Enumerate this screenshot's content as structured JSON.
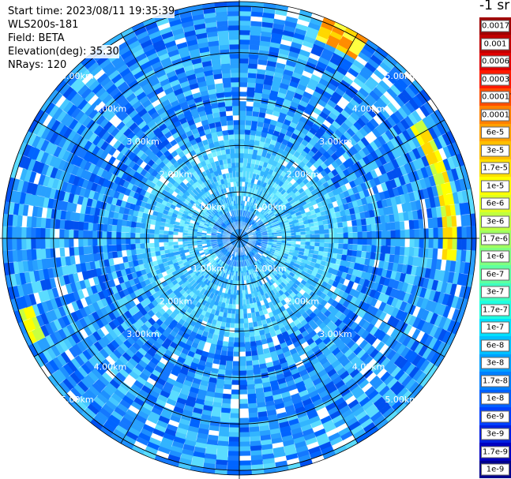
{
  "header": {
    "start_time": "Start time: 2023/08/11 19:35:39",
    "instrument": "WLS200s-181",
    "field": "Field: BETA",
    "elevation": "Elevation(deg): 35.30",
    "nrays": "NRays: 120"
  },
  "chart_data": {
    "type": "heatmap",
    "projection": "polar",
    "n_rays": 120,
    "range_rings_km": [
      1.0,
      2.0,
      3.0,
      4.0,
      5.0
    ],
    "ring_labels": [
      "1.00km",
      "2.00km",
      "3.00km",
      "4.00km",
      "5.00km"
    ],
    "colorbar": {
      "unit_label": "-1 sr",
      "tick_labels": [
        "0.0017",
        "0.001",
        "0.0006",
        "0.0003",
        "0.00017",
        "0.0001",
        "6e-5",
        "3e-5",
        "1.7e-5",
        "1e-5",
        "6e-6",
        "3e-6",
        "1.7e-6",
        "1e-6",
        "6e-7",
        "3e-7",
        "1.7e-7",
        "1e-7",
        "6e-8",
        "3e-8",
        "1.7e-8",
        "1e-8",
        "6e-9",
        "3e-9",
        "1.7e-9",
        "1e-9"
      ],
      "colors": [
        "#a00000",
        "#c00000",
        "#e00000",
        "#ff1a00",
        "#ff4d00",
        "#ff8000",
        "#ffa000",
        "#ffbf00",
        "#ffdf00",
        "#ffff00",
        "#e0ff20",
        "#c0ff40",
        "#a0ff60",
        "#80ff80",
        "#60ffa0",
        "#40ffc0",
        "#20ffe0",
        "#00e0ff",
        "#00c0ff",
        "#00a0ff",
        "#0080ff",
        "#0060ff",
        "#0040ff",
        "#0020e0",
        "#0000c0",
        "#00008c"
      ]
    },
    "features": [
      {
        "description": "aerosol layer band",
        "azimuth_deg_range": [
          20,
          34
        ],
        "range_km": [
          4.6,
          5.2
        ],
        "value": "3e-5"
      },
      {
        "description": "aerosol layer band",
        "azimuth_deg_range": [
          58,
          96
        ],
        "range_km": [
          4.4,
          4.7
        ],
        "value": "1e-5"
      },
      {
        "description": "aerosol layer band",
        "azimuth_deg_range": [
          242,
          252
        ],
        "range_km": [
          4.7,
          5.0
        ],
        "value": "6e-6"
      }
    ]
  },
  "colors": {
    "background_field": "#1e90ff",
    "grid_lines": "#000000"
  }
}
